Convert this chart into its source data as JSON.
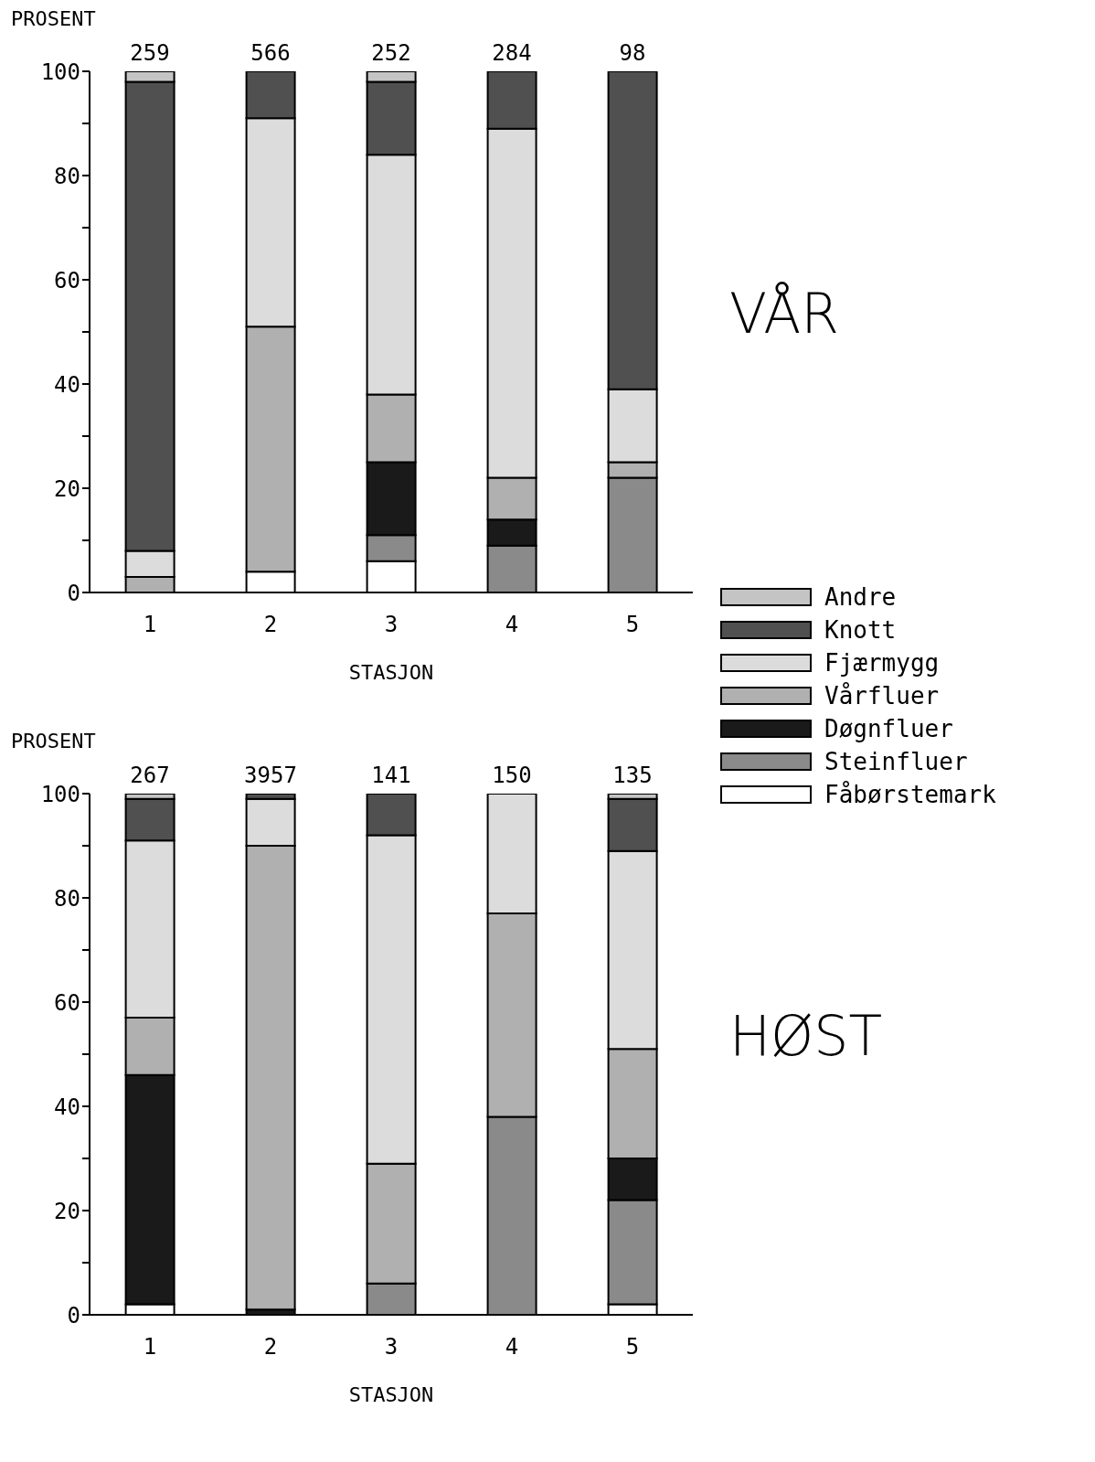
{
  "chart_data": [
    {
      "type": "bar",
      "stacked": true,
      "ylabel": "PROSENT",
      "xlabel": "STASJON",
      "categories": [
        "1",
        "2",
        "3",
        "4",
        "5"
      ],
      "series": [
        {
          "name": "Fåbørstemark",
          "color": "#ffffff",
          "values": [
            0,
            4,
            6,
            0,
            0
          ]
        },
        {
          "name": "Steinfluer",
          "color": "#8a8a8a",
          "values": [
            0,
            0,
            5,
            9,
            22
          ]
        },
        {
          "name": "Døgnfluer",
          "color": "#1a1a1a",
          "values": [
            0,
            0,
            14,
            5,
            0
          ]
        },
        {
          "name": "Vårfluer",
          "color": "#b0b0b0",
          "values": [
            3,
            47,
            13,
            8,
            3
          ]
        },
        {
          "name": "Fjærmygg",
          "color": "#dcdcdc",
          "values": [
            5,
            40,
            46,
            67,
            14
          ]
        },
        {
          "name": "Knott",
          "color": "#505050",
          "values": [
            90,
            9,
            14,
            11,
            61
          ]
        },
        {
          "name": "Andre",
          "color": "#c4c4c4",
          "values": [
            2,
            0,
            2,
            0,
            0
          ]
        }
      ],
      "ylim": [
        0,
        100
      ],
      "yticks": [
        0,
        {
          "value": 10,
          "label": null
        },
        20,
        {
          "value": 30,
          "label": null
        },
        40,
        {
          "value": 50,
          "label": null
        },
        60,
        {
          "value": 70,
          "label": null
        },
        80,
        {
          "value": 90,
          "label": null
        },
        100
      ],
      "annotations": [
        "VÅR",
        {
          "text": "259",
          "x": "1",
          "y": 100
        },
        {
          "text": "566",
          "x": "2",
          "y": 100
        },
        {
          "text": "252",
          "x": "3",
          "y": 100
        },
        {
          "text": "284",
          "x": "4",
          "y": 100
        },
        {
          "text": "98",
          "x": "5",
          "y": 100
        }
      ],
      "legend": "right"
    },
    {
      "type": "bar",
      "stacked": true,
      "ylabel": "PROSENT",
      "xlabel": "STASJON",
      "categories": [
        "1",
        "2",
        "3",
        "4",
        "5"
      ],
      "series": [
        {
          "color": "#ffffff",
          "values": [
            2,
            0,
            0,
            0,
            2
          ]
        },
        {
          "color": "#8a8a8a",
          "values": [
            0,
            0,
            6,
            38,
            20
          ]
        },
        {
          "color": "#1a1a1a",
          "values": [
            44,
            1,
            0,
            0,
            8
          ]
        },
        {
          "color": "#b0b0b0",
          "values": [
            11,
            89,
            23,
            39,
            21
          ]
        },
        {
          "color": "#dcdcdc",
          "values": [
            34,
            9,
            63,
            23,
            38
          ]
        },
        {
          "color": "#505050",
          "values": [
            8,
            1,
            8,
            0,
            10
          ]
        },
        {
          "color": "#c4c4c4",
          "values": [
            1,
            0,
            0,
            0,
            1
          ]
        }
      ],
      "ylim": [
        0,
        100
      ],
      "yticks": [
        0,
        {
          "value": 10,
          "label": null
        },
        20,
        {
          "value": 30,
          "label": null
        },
        40,
        {
          "value": 50,
          "label": null
        },
        60,
        {
          "value": 70,
          "label": null
        },
        80,
        {
          "value": 90,
          "label": null
        },
        100
      ],
      "annotations": [
        "HØST",
        {
          "text": "267",
          "x": "1",
          "y": 100
        },
        {
          "text": "3957",
          "x": "2",
          "y": 100
        },
        {
          "text": "141",
          "x": "3",
          "y": 100
        },
        {
          "text": "150",
          "x": "4",
          "y": 100
        },
        {
          "text": "135",
          "x": "5",
          "y": 100
        }
      ]
    }
  ]
}
